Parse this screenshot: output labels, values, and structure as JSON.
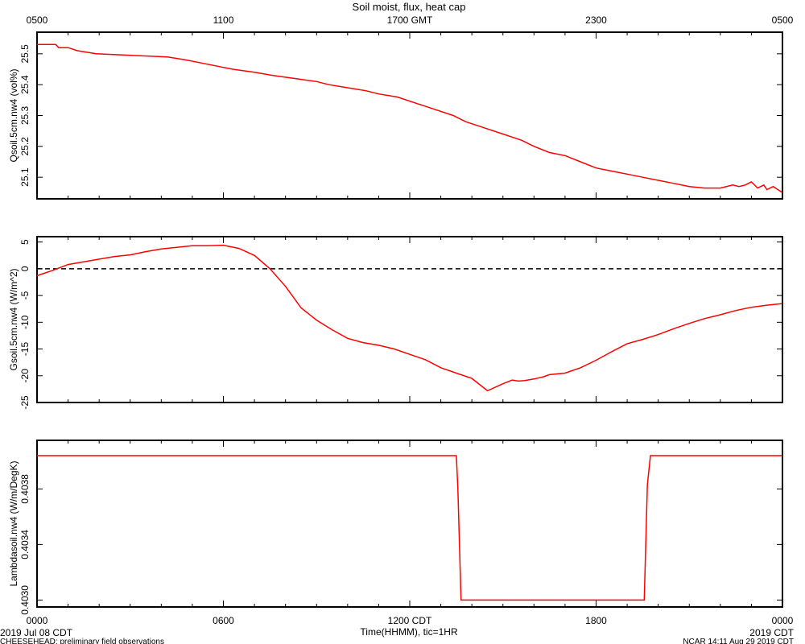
{
  "figure": {
    "title": "Soil moist, flux, heat cap",
    "top_ticks": [
      "0500",
      "1100",
      "1700 GMT",
      "2300",
      "0500"
    ],
    "bottom_ticks": [
      "0000",
      "0600",
      "1200 CDT",
      "1800",
      "0000"
    ],
    "xlabel": "Time(HHMM), tic=1HR",
    "date_label": "2019 Jul 08 CDT",
    "project_label": "CHEESEHEAD: preliminary field observations",
    "credit_label": "NCAR 14:11 Aug 29 2019 CDT",
    "end_date_label": "2019 CDT",
    "line_color": "#ff0000"
  },
  "chart_data": [
    {
      "type": "line",
      "ylabel": "Qsoil.5cm.nw4 (vol%)",
      "ylim": [
        25.03,
        25.57
      ],
      "yticks": [
        25.1,
        25.2,
        25.3,
        25.4,
        25.5
      ],
      "ytick_labels": [
        "25.1",
        "25.2",
        "25.3",
        "25.4",
        "25.5"
      ],
      "xlim": [
        0,
        24
      ],
      "series": [
        {
          "color": "#ff0000",
          "x": [
            0,
            0.6,
            0.7,
            1.0,
            1.3,
            1.9,
            4.2,
            4.8,
            5.3,
            5.8,
            6.3,
            7.0,
            7.6,
            8.3,
            9.0,
            9.4,
            10.0,
            10.6,
            11.0,
            11.6,
            12.2,
            12.8,
            13.4,
            13.8,
            14.4,
            15.0,
            15.6,
            16.0,
            16.5,
            17.0,
            17.5,
            18.0,
            18.5,
            19.0,
            19.5,
            20.0,
            20.5,
            21.0,
            21.5,
            22.0,
            22.4,
            22.6,
            22.8,
            23.0,
            23.2,
            23.4,
            23.5,
            23.7,
            24.0
          ],
          "y": [
            25.53,
            25.53,
            25.52,
            25.52,
            25.51,
            25.5,
            25.49,
            25.48,
            25.47,
            25.46,
            25.45,
            25.44,
            25.43,
            25.42,
            25.41,
            25.4,
            25.39,
            25.38,
            25.37,
            25.36,
            25.34,
            25.32,
            25.3,
            25.28,
            25.26,
            25.24,
            25.22,
            25.2,
            25.18,
            25.17,
            25.15,
            25.13,
            25.12,
            25.11,
            25.1,
            25.09,
            25.08,
            25.07,
            25.065,
            25.065,
            25.075,
            25.07,
            25.075,
            25.085,
            25.065,
            25.075,
            25.06,
            25.07,
            25.05
          ]
        }
      ]
    },
    {
      "type": "line",
      "ylabel": "Gsoil.5cm.nw4 (W/m^2)",
      "ylim": [
        -25,
        6
      ],
      "yticks": [
        5,
        0,
        -5,
        -10,
        -15,
        -20,
        -25
      ],
      "ytick_labels": [
        "5",
        "0",
        "-5",
        "-10",
        "-15",
        "-20",
        "-25"
      ],
      "xlim": [
        0,
        24
      ],
      "reference_line": 0,
      "series": [
        {
          "color": "#ff0000",
          "x": [
            0,
            0.5,
            1.0,
            1.5,
            2.0,
            2.5,
            3.0,
            3.5,
            4.0,
            4.5,
            5.0,
            5.5,
            6.0,
            6.5,
            7.0,
            7.5,
            8.0,
            8.5,
            9.0,
            9.5,
            10.0,
            10.5,
            11.0,
            11.5,
            12.0,
            12.5,
            13.0,
            13.5,
            14.0,
            14.5,
            15.0,
            15.3,
            15.5,
            15.7,
            16.0,
            16.3,
            16.5,
            17.0,
            17.5,
            18.0,
            18.5,
            19.0,
            19.5,
            20.0,
            20.5,
            21.0,
            21.5,
            22.0,
            22.5,
            23.0,
            23.5,
            24.0
          ],
          "y": [
            -1.3,
            -0.3,
            0.8,
            1.3,
            1.8,
            2.3,
            2.6,
            3.2,
            3.7,
            4.0,
            4.3,
            4.3,
            4.4,
            3.8,
            2.5,
            0.0,
            -3.3,
            -7.3,
            -9.6,
            -11.4,
            -13.0,
            -13.8,
            -14.3,
            -15.0,
            -16.0,
            -17.0,
            -18.5,
            -19.5,
            -20.5,
            -22.8,
            -21.5,
            -20.8,
            -21.0,
            -20.9,
            -20.6,
            -20.2,
            -19.8,
            -19.5,
            -18.5,
            -17.1,
            -15.5,
            -14.0,
            -13.2,
            -12.3,
            -11.2,
            -10.2,
            -9.3,
            -8.6,
            -7.8,
            -7.2,
            -6.8,
            -6.5
          ]
        }
      ]
    },
    {
      "type": "line",
      "ylabel": "Lambdasoil.nw4 (W/m/DegK)",
      "ylim": [
        0.40295,
        0.40415
      ],
      "yticks": [
        0.403,
        0.4034,
        0.4038
      ],
      "ytick_labels": [
        "0.4030",
        "0.4034",
        "0.4038"
      ],
      "xlim": [
        0,
        24
      ],
      "series": [
        {
          "color": "#ff0000",
          "x": [
            0,
            13.5,
            13.55,
            13.65,
            19.55,
            19.65,
            19.75,
            24.0
          ],
          "y": [
            0.40404,
            0.40404,
            0.4038,
            0.403,
            0.403,
            0.40383,
            0.40404,
            0.40404
          ]
        }
      ]
    }
  ]
}
